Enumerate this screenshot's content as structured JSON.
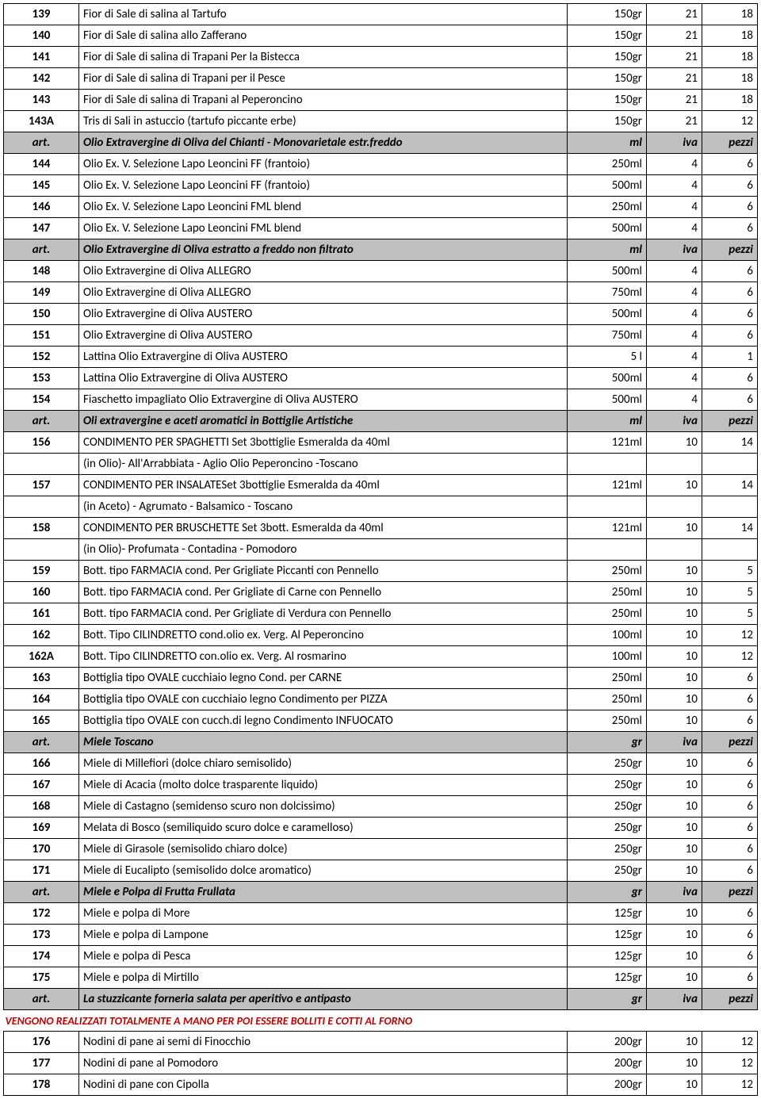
{
  "table": {
    "columns": [
      "art",
      "desc",
      "size",
      "iva",
      "pezzi"
    ],
    "header_labels": {
      "art": "art.",
      "iva": "iva",
      "pezzi": "pezzi"
    },
    "rows": [
      {
        "type": "data",
        "art": "139",
        "desc": "Fior di Sale di salina al Tartufo",
        "size": "150gr",
        "iva": "21",
        "pezzi": "18"
      },
      {
        "type": "data",
        "art": "140",
        "desc": "Fior di Sale di salina allo Zafferano",
        "size": "150gr",
        "iva": "21",
        "pezzi": "18"
      },
      {
        "type": "data",
        "art": "141",
        "desc": "Fior di Sale di salina di Trapani Per la Bistecca",
        "size": "150gr",
        "iva": "21",
        "pezzi": "18"
      },
      {
        "type": "data",
        "art": "142",
        "desc": "Fior di Sale di salina di Trapani per il Pesce",
        "size": "150gr",
        "iva": "21",
        "pezzi": "18"
      },
      {
        "type": "data",
        "art": "143",
        "desc": "Fior di Sale di salina di Trapani al Peperoncino",
        "size": "150gr",
        "iva": "21",
        "pezzi": "18"
      },
      {
        "type": "data",
        "art": "143A",
        "desc": "Tris di Sali in astuccio (tartufo piccante erbe)",
        "size": "150gr",
        "iva": "21",
        "pezzi": "12"
      },
      {
        "type": "header",
        "desc": "Olio Extravergine di Oliva del Chianti - Monovarietale estr.freddo",
        "size": "ml"
      },
      {
        "type": "data",
        "art": "144",
        "desc": "Olio Ex. V. Selezione Lapo Leoncini  FF (frantoio)",
        "size": "250ml",
        "iva": "4",
        "pezzi": "6"
      },
      {
        "type": "data",
        "art": "145",
        "desc": "Olio Ex. V. Selezione Lapo Leoncini  FF (frantoio)",
        "size": "500ml",
        "iva": "4",
        "pezzi": "6"
      },
      {
        "type": "data",
        "art": "146",
        "desc": "Olio Ex. V. Selezione Lapo Leoncini FML blend",
        "size": "250ml",
        "iva": "4",
        "pezzi": "6"
      },
      {
        "type": "data",
        "art": "147",
        "desc": "Olio Ex. V. Selezione Lapo Leoncini  FML blend",
        "size": "500ml",
        "iva": "4",
        "pezzi": "6"
      },
      {
        "type": "header",
        "desc": "Olio Extravergine di Oliva estratto a freddo non filtrato",
        "size": "ml"
      },
      {
        "type": "data",
        "art": "148",
        "desc": "Olio Extravergine di Oliva ALLEGRO",
        "size": "500ml",
        "iva": "4",
        "pezzi": "6"
      },
      {
        "type": "data",
        "art": "149",
        "desc": "Olio Extravergine di Oliva ALLEGRO",
        "size": "750ml",
        "iva": "4",
        "pezzi": "6"
      },
      {
        "type": "data",
        "art": "150",
        "desc": "Olio Extravergine di Oliva AUSTERO",
        "size": "500ml",
        "iva": "4",
        "pezzi": "6"
      },
      {
        "type": "data",
        "art": "151",
        "desc": "Olio Extravergine di Oliva AUSTERO",
        "size": "750ml",
        "iva": "4",
        "pezzi": "6"
      },
      {
        "type": "data",
        "art": "152",
        "desc": "Lattina Olio Extravergine di Oliva AUSTERO",
        "size": "5 l",
        "iva": "4",
        "pezzi": "1"
      },
      {
        "type": "data",
        "art": "153",
        "desc": "Lattina Olio Extravergine di Oliva AUSTERO",
        "size": "500ml",
        "iva": "4",
        "pezzi": "6"
      },
      {
        "type": "data",
        "art": "154",
        "desc": "Fiaschetto impagliato Olio Extravergine di Oliva AUSTERO",
        "size": "500ml",
        "iva": "4",
        "pezzi": "6"
      },
      {
        "type": "header",
        "desc": "Oli extravergine e aceti aromatici in Bottiglie Artistiche",
        "size": "ml"
      },
      {
        "type": "data",
        "art": "156",
        "desc": "CONDIMENTO PER SPAGHETTI Set 3bottiglie Esmeralda da 40ml",
        "size": "121ml",
        "iva": "10",
        "pezzi": "14"
      },
      {
        "type": "sub",
        "art": "",
        "desc": "(in Olio)- All'Arrabbiata - Aglio Olio Peperoncino -Toscano",
        "size": "",
        "iva": "",
        "pezzi": ""
      },
      {
        "type": "data",
        "art": "157",
        "desc": "CONDIMENTO PER INSALATESet 3bottiglie Esmeralda da 40ml",
        "size": "121ml",
        "iva": "10",
        "pezzi": "14"
      },
      {
        "type": "sub",
        "art": "",
        "desc": "(in Aceto) - Agrumato - Balsamico - Toscano",
        "size": "",
        "iva": "",
        "pezzi": ""
      },
      {
        "type": "data",
        "art": "158",
        "desc": "CONDIMENTO PER BRUSCHETTE Set 3bott. Esmeralda da 40ml",
        "size": "121ml",
        "iva": "10",
        "pezzi": "14"
      },
      {
        "type": "sub",
        "art": "",
        "desc": "(in Olio)- Profumata - Contadina - Pomodoro",
        "size": "",
        "iva": "",
        "pezzi": ""
      },
      {
        "type": "data",
        "art": "159",
        "desc": "Bott. tipo FARMACIA cond. Per Grigliate Piccanti con Pennello",
        "size": "250ml",
        "iva": "10",
        "pezzi": "5"
      },
      {
        "type": "data",
        "art": "160",
        "desc": "Bott. tipo FARMACIA cond. Per Grigliate di Carne con Pennello",
        "size": "250ml",
        "iva": "10",
        "pezzi": "5"
      },
      {
        "type": "data",
        "art": "161",
        "desc": "Bott. tipo FARMACIA cond. Per Grigliate di Verdura con Pennello",
        "size": "250ml",
        "iva": "10",
        "pezzi": "5"
      },
      {
        "type": "data",
        "art": "162",
        "desc": "Bott. Tipo CILINDRETTO cond.olio ex. Verg. Al Peperoncino",
        "size": "100ml",
        "iva": "10",
        "pezzi": "12"
      },
      {
        "type": "data",
        "art": "162A",
        "desc": "Bott. Tipo CILINDRETTO con.olio ex. Verg. Al rosmarino",
        "size": "100ml",
        "iva": "10",
        "pezzi": "12"
      },
      {
        "type": "data",
        "art": "163",
        "desc": "Bottiglia tipo OVALE cucchiaio legno Cond. per CARNE",
        "size": "250ml",
        "iva": "10",
        "pezzi": "6"
      },
      {
        "type": "data",
        "art": "164",
        "desc": "Bottiglia tipo OVALE con cucchiaio legno Condimento per PIZZA",
        "size": "250ml",
        "iva": "10",
        "pezzi": "6"
      },
      {
        "type": "data",
        "art": "165",
        "desc": "Bottiglia tipo OVALE con cucch.di legno Condimento INFUOCATO",
        "size": "250ml",
        "iva": "10",
        "pezzi": "6"
      },
      {
        "type": "header",
        "desc": "Miele Toscano",
        "size": "gr"
      },
      {
        "type": "data",
        "art": "166",
        "desc": "Miele di Millefiori (dolce chiaro semisolido)",
        "size": "250gr",
        "iva": "10",
        "pezzi": "6"
      },
      {
        "type": "data",
        "art": "167",
        "desc": "Miele di Acacia (molto dolce trasparente liquido)",
        "size": "250gr",
        "iva": "10",
        "pezzi": "6"
      },
      {
        "type": "data",
        "art": "168",
        "desc": "Miele di Castagno (semidenso scuro non dolcissimo)",
        "size": "250gr",
        "iva": "10",
        "pezzi": "6"
      },
      {
        "type": "data",
        "art": "169",
        "desc": "Melata di Bosco (semiliquido scuro dolce e caramelloso)",
        "size": "250gr",
        "iva": "10",
        "pezzi": "6"
      },
      {
        "type": "data",
        "art": "170",
        "desc": "Miele di Girasole (semisolido chiaro dolce)",
        "size": "250gr",
        "iva": "10",
        "pezzi": "6"
      },
      {
        "type": "data",
        "art": "171",
        "desc": "Miele di Eucalipto (semisolido dolce aromatico)",
        "size": "250gr",
        "iva": "10",
        "pezzi": "6"
      },
      {
        "type": "header",
        "desc": "Miele e Polpa di Frutta Frullata",
        "size": "gr"
      },
      {
        "type": "data",
        "art": "172",
        "desc": "Miele e polpa di More",
        "size": "125gr",
        "iva": "10",
        "pezzi": "6"
      },
      {
        "type": "data",
        "art": "173",
        "desc": "Miele e polpa di Lampone",
        "size": "125gr",
        "iva": "10",
        "pezzi": "6"
      },
      {
        "type": "data",
        "art": "174",
        "desc": "Miele e polpa di Pesca",
        "size": "125gr",
        "iva": "10",
        "pezzi": "6"
      },
      {
        "type": "data",
        "art": "175",
        "desc": "Miele e polpa di Mirtillo",
        "size": "125gr",
        "iva": "10",
        "pezzi": "6"
      },
      {
        "type": "header",
        "desc": "La stuzzicante forneria salata per aperitivo e antipasto",
        "size": "gr"
      },
      {
        "type": "note",
        "text": "VENGONO REALIZZATI TOTALMENTE A MANO PER POI ESSERE BOLLITI E COTTI AL FORNO"
      },
      {
        "type": "data",
        "art": "176",
        "desc": "Nodini di pane ai semi di Finocchio",
        "size": "200gr",
        "iva": "10",
        "pezzi": "12"
      },
      {
        "type": "data",
        "art": "177",
        "desc": "Nodini di pane al Pomodoro",
        "size": "200gr",
        "iva": "10",
        "pezzi": "12"
      },
      {
        "type": "data",
        "art": "178",
        "desc": "Nodini di pane con Cipolla",
        "size": "200gr",
        "iva": "10",
        "pezzi": "12"
      }
    ]
  },
  "colors": {
    "header_bg": "#bfbfbf",
    "note_text": "#c00000",
    "border": "#000000",
    "background": "#ffffff"
  }
}
